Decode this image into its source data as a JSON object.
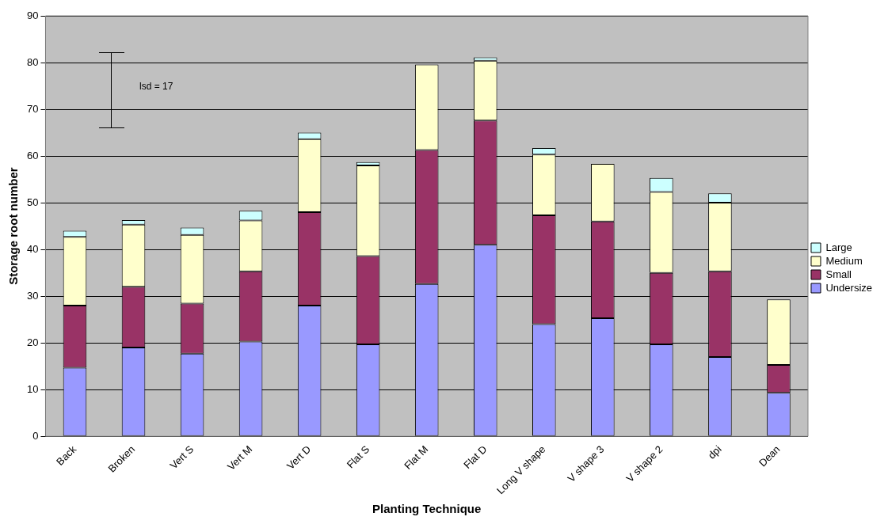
{
  "chart_data": {
    "type": "bar",
    "stacked": true,
    "xlabel": "Planting Technique",
    "ylabel": "Storage root number",
    "categories": [
      "Back",
      "Broken",
      "Vert S",
      "Vert M",
      "Vert D",
      "Flat S",
      "Flat M",
      "Flat D",
      "Long V shape",
      "V shape 3",
      "V shape 2",
      "dpi",
      "Dean"
    ],
    "series": [
      {
        "name": "Undersize",
        "color": "#9999ff",
        "values": [
          14.7,
          19,
          17.7,
          20.3,
          28,
          19.7,
          32.6,
          41,
          24,
          25.3,
          19.7,
          17,
          9.3
        ]
      },
      {
        "name": "Small",
        "color": "#993366",
        "values": [
          13.3,
          13,
          10.7,
          15,
          20,
          18.9,
          28.7,
          26.6,
          23.3,
          20.7,
          15.3,
          18.3,
          6
        ]
      },
      {
        "name": "Medium",
        "color": "#ffffcc",
        "values": [
          14.7,
          13.3,
          14.7,
          10.9,
          15.6,
          19.4,
          18.3,
          12.8,
          13,
          12.3,
          17.3,
          14.7,
          14
        ]
      },
      {
        "name": "Large",
        "color": "#ccffff",
        "values": [
          1.3,
          1,
          1.6,
          2.1,
          1.4,
          0.7,
          null,
          0.7,
          1.4,
          null,
          3,
          2,
          0
        ]
      }
    ],
    "ylim": [
      0,
      90
    ],
    "yticks": [
      0,
      10,
      20,
      30,
      40,
      50,
      60,
      70,
      80,
      90
    ],
    "grid": "y",
    "legend": "right",
    "annotations": [
      "lsd = 17"
    ]
  }
}
